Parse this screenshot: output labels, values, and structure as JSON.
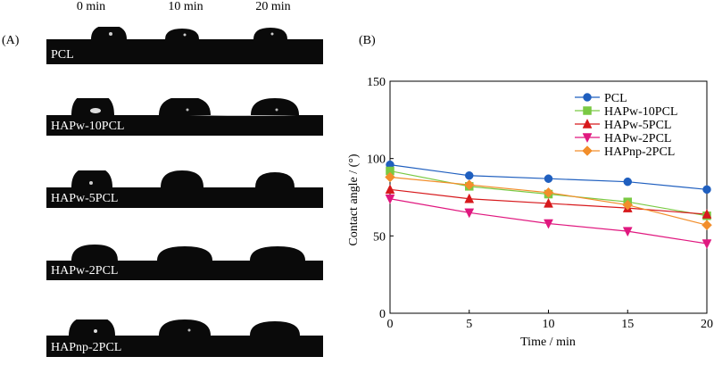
{
  "panel_a_label": "(A)",
  "panel_b_label": "(B)",
  "time_labels": [
    "0 min",
    "10 min",
    "20 min"
  ],
  "samples": [
    "PCL",
    "HAPw-10PCL",
    "HAPw-5PCL",
    "HAPw-2PCL",
    "HAPnp-2PCL"
  ],
  "chart_data": {
    "type": "line",
    "xlabel": "Time / min",
    "ylabel": "Contact angle / (°)",
    "x": [
      0,
      5,
      10,
      15,
      20
    ],
    "xlim": [
      0,
      20
    ],
    "ylim": [
      0,
      150
    ],
    "xticks": [
      "0",
      "5",
      "10",
      "15",
      "20"
    ],
    "yticks": [
      "0",
      "50",
      "100",
      "150"
    ],
    "grid": false,
    "legend_position": "top-right",
    "series": [
      {
        "name": "PCL",
        "color": "#1f5fbf",
        "marker": "circle",
        "values": [
          96,
          89,
          87,
          85,
          80
        ]
      },
      {
        "name": "HAPw-10PCL",
        "color": "#7ac943",
        "marker": "square",
        "values": [
          92,
          82,
          77,
          72,
          63
        ]
      },
      {
        "name": "HAPw-5PCL",
        "color": "#d7191c",
        "marker": "triangle-up",
        "values": [
          80,
          74,
          71,
          68,
          64
        ]
      },
      {
        "name": "HAPw-2PCL",
        "color": "#e0187f",
        "marker": "triangle-down",
        "values": [
          74,
          65,
          58,
          53,
          45
        ]
      },
      {
        "name": "HAPnp-2PCL",
        "color": "#f28e2b",
        "marker": "diamond",
        "values": [
          88,
          83,
          78,
          70,
          57
        ]
      }
    ]
  }
}
